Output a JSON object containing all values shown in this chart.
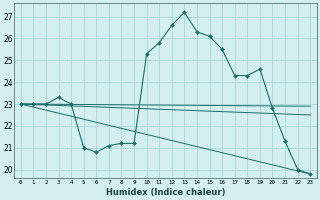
{
  "xlabel": "Humidex (Indice chaleur)",
  "background_color": "#d4efef",
  "grid_color": "#aad8d8",
  "line_color": "#1a6b6b",
  "xlim": [
    -0.5,
    23.5
  ],
  "ylim": [
    19.6,
    27.6
  ],
  "yticks": [
    20,
    21,
    22,
    23,
    24,
    25,
    26,
    27
  ],
  "xticks": [
    0,
    1,
    2,
    3,
    4,
    5,
    6,
    7,
    8,
    9,
    10,
    11,
    12,
    13,
    14,
    15,
    16,
    17,
    18,
    19,
    20,
    21,
    22,
    23
  ],
  "series": [
    {
      "x": [
        0,
        1,
        2,
        3,
        4,
        5,
        6,
        7,
        8,
        9,
        10,
        11,
        12,
        13,
        14,
        15,
        16,
        17,
        18,
        19,
        20,
        21,
        22,
        23
      ],
      "y": [
        23.0,
        23.0,
        23.0,
        23.3,
        23.0,
        21.0,
        20.8,
        21.1,
        21.2,
        21.2,
        25.3,
        25.8,
        26.6,
        27.2,
        26.3,
        26.1,
        25.5,
        24.3,
        24.3,
        24.6,
        22.8,
        21.3,
        20.0,
        19.8
      ],
      "marker": true,
      "linewidth": 0.8,
      "markersize": 2.0
    },
    {
      "x": [
        0,
        23
      ],
      "y": [
        23.0,
        22.9
      ],
      "marker": false,
      "linewidth": 0.7,
      "markersize": 0
    },
    {
      "x": [
        0,
        23
      ],
      "y": [
        23.0,
        22.5
      ],
      "marker": false,
      "linewidth": 0.7,
      "markersize": 0
    },
    {
      "x": [
        0,
        23
      ],
      "y": [
        23.0,
        19.8
      ],
      "marker": false,
      "linewidth": 0.7,
      "markersize": 0
    }
  ]
}
